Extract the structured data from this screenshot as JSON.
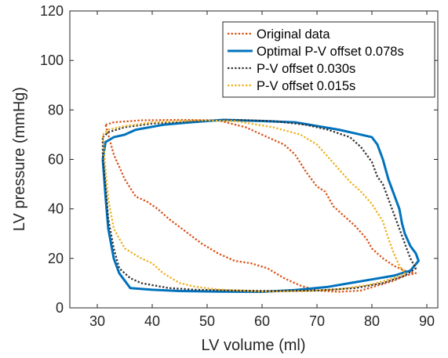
{
  "chart_data": {
    "type": "line",
    "xlabel": "LV volume (ml)",
    "ylabel": "LV pressure (mmHg)",
    "xlim": [
      25,
      92
    ],
    "ylim": [
      0,
      120
    ],
    "xticks": [
      30,
      40,
      50,
      60,
      70,
      80,
      90
    ],
    "yticks": [
      0,
      20,
      40,
      60,
      80,
      100,
      120
    ],
    "xtick_labels": [
      "30",
      "40",
      "50",
      "60",
      "70",
      "80",
      "90"
    ],
    "ytick_labels": [
      "0",
      "20",
      "40",
      "60",
      "80",
      "100",
      "120"
    ],
    "grid": false,
    "legend_position": "top-right",
    "series": [
      {
        "name": "Original data",
        "color": "#D95319",
        "style": "dotted",
        "points": [
          [
            31.5,
            74
          ],
          [
            33,
            75
          ],
          [
            38,
            75.8
          ],
          [
            45,
            76
          ],
          [
            52,
            75.8
          ],
          [
            57,
            73
          ],
          [
            61,
            69
          ],
          [
            64,
            66
          ],
          [
            66,
            62
          ],
          [
            68,
            55
          ],
          [
            70,
            49
          ],
          [
            71.5,
            47
          ],
          [
            73,
            41
          ],
          [
            75,
            37
          ],
          [
            77,
            33
          ],
          [
            79,
            28
          ],
          [
            80,
            24
          ],
          [
            82,
            20
          ],
          [
            84,
            17
          ],
          [
            86,
            15
          ],
          [
            88,
            14
          ],
          [
            86,
            13
          ],
          [
            84,
            11
          ],
          [
            81,
            9
          ],
          [
            78,
            7
          ],
          [
            74,
            6.5
          ],
          [
            70,
            7
          ],
          [
            67,
            9
          ],
          [
            64,
            12
          ],
          [
            61,
            16
          ],
          [
            58,
            18
          ],
          [
            55,
            19
          ],
          [
            52,
            22
          ],
          [
            49,
            26
          ],
          [
            46,
            31
          ],
          [
            43,
            36
          ],
          [
            41,
            40
          ],
          [
            39,
            43
          ],
          [
            37,
            45
          ],
          [
            35,
            52
          ],
          [
            33,
            62
          ],
          [
            31.5,
            74
          ]
        ]
      },
      {
        "name": "Optimal P-V offset 0.078s",
        "color": "#0072BD",
        "style": "solid",
        "points": [
          [
            31,
            60
          ],
          [
            31.5,
            67
          ],
          [
            33,
            69
          ],
          [
            35,
            70
          ],
          [
            37,
            72
          ],
          [
            42,
            74
          ],
          [
            47,
            75
          ],
          [
            53,
            76
          ],
          [
            60,
            75.5
          ],
          [
            66,
            75
          ],
          [
            70,
            73.5
          ],
          [
            74,
            72
          ],
          [
            77,
            70.5
          ],
          [
            80,
            69
          ],
          [
            81,
            66
          ],
          [
            82,
            60
          ],
          [
            83,
            52
          ],
          [
            84,
            46
          ],
          [
            85,
            40
          ],
          [
            85.5,
            34
          ],
          [
            86,
            30
          ],
          [
            87,
            25
          ],
          [
            88,
            22
          ],
          [
            88.5,
            19
          ],
          [
            87,
            15
          ],
          [
            84,
            13
          ],
          [
            80,
            11.5
          ],
          [
            76,
            10
          ],
          [
            72,
            8.5
          ],
          [
            66,
            7.2
          ],
          [
            60,
            6.5
          ],
          [
            52,
            6.6
          ],
          [
            45,
            6.8
          ],
          [
            40,
            7.3
          ],
          [
            36,
            8
          ],
          [
            34,
            14
          ],
          [
            33,
            20
          ],
          [
            32,
            32
          ],
          [
            31.5,
            45
          ],
          [
            31,
            60
          ]
        ]
      },
      {
        "name": "P-V offset 0.030s",
        "color": "#333333",
        "style": "dotted",
        "points": [
          [
            31,
            69
          ],
          [
            32,
            71
          ],
          [
            35,
            73
          ],
          [
            40,
            74.5
          ],
          [
            48,
            75.5
          ],
          [
            55,
            76
          ],
          [
            62,
            75.5
          ],
          [
            68,
            74
          ],
          [
            72,
            72
          ],
          [
            76,
            69
          ],
          [
            78,
            65
          ],
          [
            80,
            59
          ],
          [
            81,
            53
          ],
          [
            82,
            50
          ],
          [
            83,
            44
          ],
          [
            84,
            38
          ],
          [
            85,
            32
          ],
          [
            86,
            26
          ],
          [
            87,
            20
          ],
          [
            88,
            16
          ],
          [
            86,
            13
          ],
          [
            82,
            10
          ],
          [
            77,
            8
          ],
          [
            70,
            7
          ],
          [
            62,
            6.8
          ],
          [
            55,
            7
          ],
          [
            48,
            7.3
          ],
          [
            43,
            8
          ],
          [
            38,
            10
          ],
          [
            36,
            12
          ],
          [
            34,
            16
          ],
          [
            33,
            24
          ],
          [
            32,
            36
          ],
          [
            31.5,
            50
          ],
          [
            31,
            62
          ],
          [
            31,
            69
          ]
        ]
      },
      {
        "name": "P-V offset 0.015s",
        "color": "#EDB120",
        "style": "dotted",
        "points": [
          [
            31,
            70
          ],
          [
            32,
            72
          ],
          [
            35,
            73.5
          ],
          [
            40,
            75
          ],
          [
            48,
            75.8
          ],
          [
            55,
            75.5
          ],
          [
            62,
            73
          ],
          [
            67,
            70
          ],
          [
            70,
            66
          ],
          [
            72,
            61
          ],
          [
            74,
            56
          ],
          [
            76,
            51
          ],
          [
            78,
            47
          ],
          [
            80,
            42
          ],
          [
            82,
            35
          ],
          [
            83,
            28
          ],
          [
            84,
            22
          ],
          [
            85,
            17
          ],
          [
            86,
            14
          ],
          [
            84,
            12
          ],
          [
            80,
            9.5
          ],
          [
            74,
            7.5
          ],
          [
            68,
            6.8
          ],
          [
            60,
            6.6
          ],
          [
            52,
            7.4
          ],
          [
            48,
            8.5
          ],
          [
            45,
            10
          ],
          [
            42,
            14
          ],
          [
            40,
            18
          ],
          [
            38,
            20
          ],
          [
            35,
            24
          ],
          [
            33,
            32
          ],
          [
            32,
            44
          ],
          [
            31.5,
            56
          ],
          [
            31,
            70
          ]
        ]
      }
    ]
  }
}
